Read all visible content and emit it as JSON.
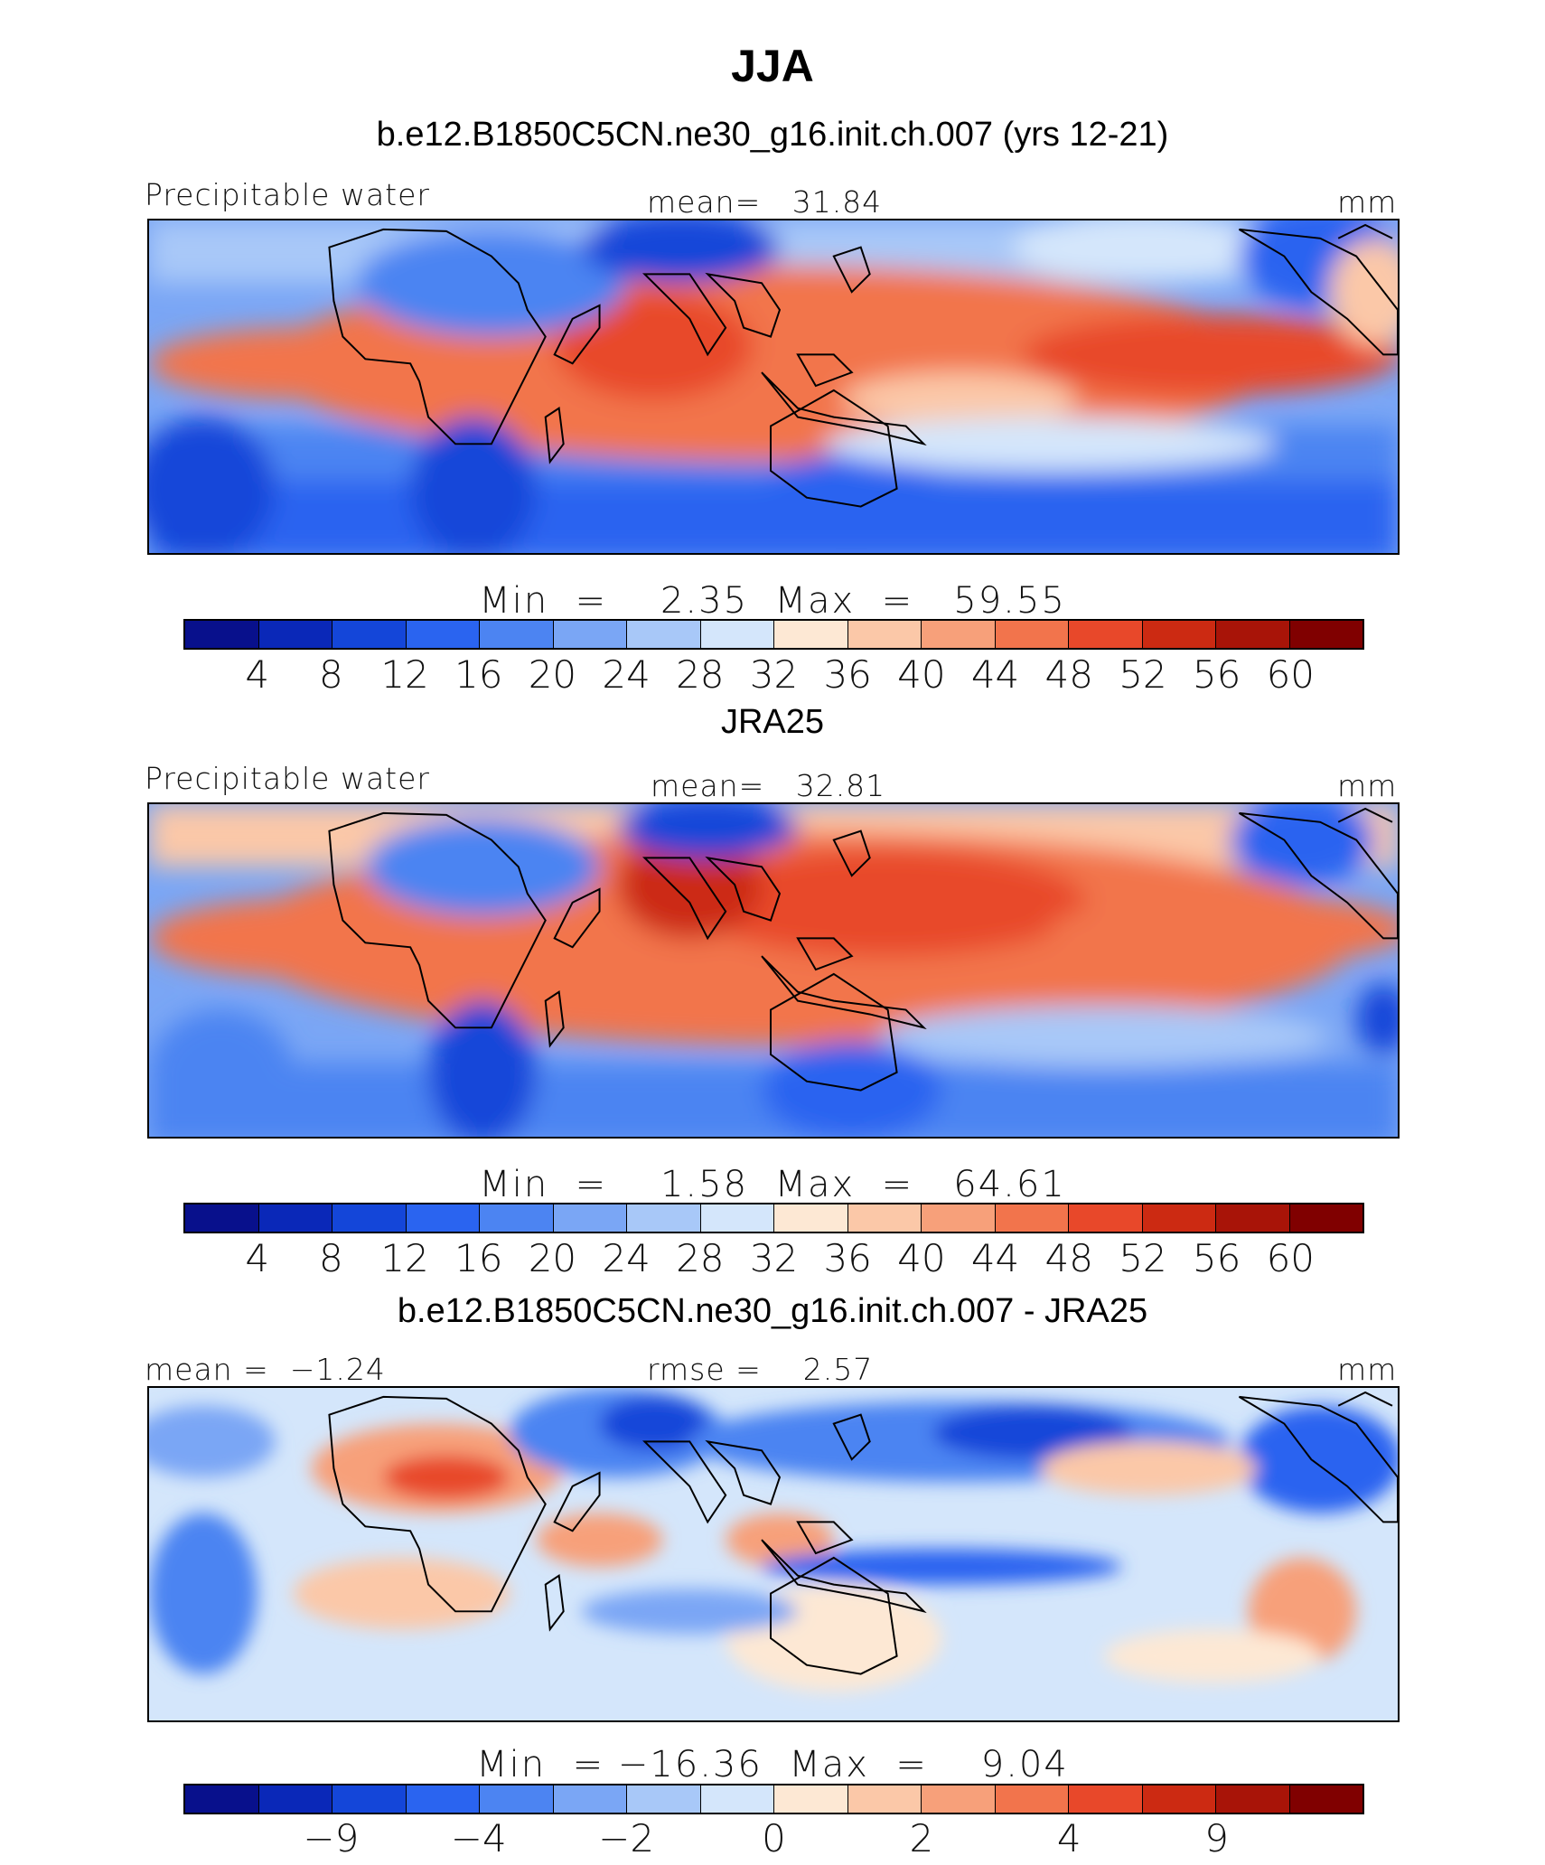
{
  "title": "JJA",
  "panels": [
    {
      "heading": "b.e12.B1850C5CN.ne30_g16.init.ch.007 (yrs 12-21)",
      "left_label": "Precipitable water",
      "center_label": "mean=   31.84",
      "right_label": "mm",
      "min_label": "Min  =    2.35",
      "max_label": "Max  =   59.55",
      "ticks": [
        "4",
        "8",
        "12",
        "16",
        "20",
        "24",
        "28",
        "32",
        "36",
        "40",
        "44",
        "48",
        "52",
        "56",
        "60"
      ]
    },
    {
      "heading": "JRA25",
      "left_label": "Precipitable water",
      "center_label": "mean=   32.81",
      "right_label": "mm",
      "min_label": "Min  =    1.58",
      "max_label": "Max  =   64.61",
      "ticks": [
        "4",
        "8",
        "12",
        "16",
        "20",
        "24",
        "28",
        "32",
        "36",
        "40",
        "44",
        "48",
        "52",
        "56",
        "60"
      ]
    },
    {
      "heading": "b.e12.B1850C5CN.ne30_g16.init.ch.007 - JRA25",
      "left_label": "mean =  −1.24",
      "center_label": "rmse =    2.57",
      "right_label": "mm",
      "min_label": "Min  = −16.36",
      "max_label": "Max  =    9.04",
      "ticks": [
        "−9",
        "−4",
        "−2",
        "0",
        "2",
        "4",
        "9"
      ]
    }
  ],
  "colorbar": {
    "colors": [
      "#08108c",
      "#0a28b8",
      "#1446d9",
      "#2a64f0",
      "#4c84f2",
      "#7aa6f5",
      "#a8c8f8",
      "#d4e6fb",
      "#fde8d4",
      "#fbc8a8",
      "#f7a07a",
      "#f2744c",
      "#e8482a",
      "#cc2a12",
      "#a81408",
      "#800000"
    ]
  },
  "map_fields": {
    "abs_bands_lat": [
      "low",
      "mid",
      "high"
    ],
    "diff_note": ""
  }
}
